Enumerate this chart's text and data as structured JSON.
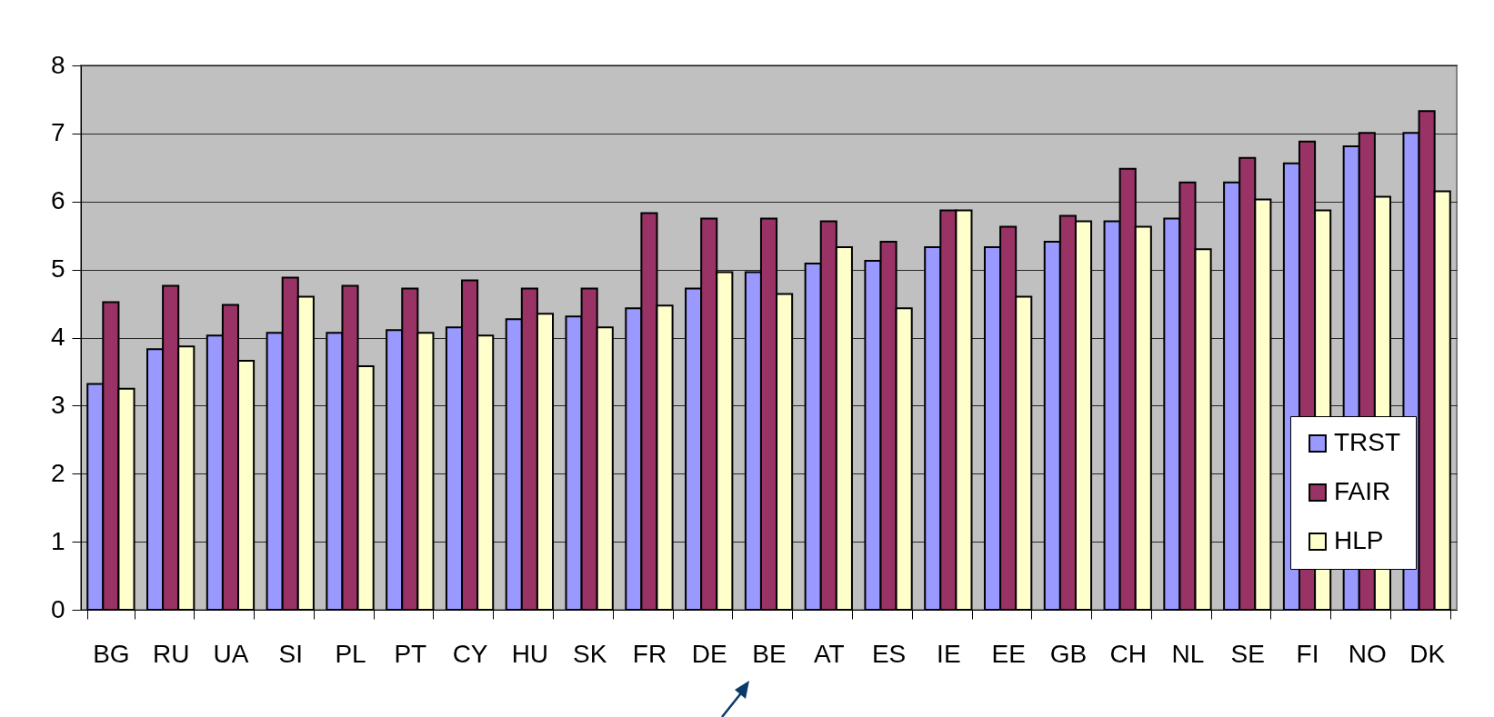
{
  "chart_data": {
    "type": "bar",
    "categories": [
      "BG",
      "RU",
      "UA",
      "SI",
      "PL",
      "PT",
      "CY",
      "HU",
      "SK",
      "FR",
      "DE",
      "BE",
      "AT",
      "ES",
      "IE",
      "EE",
      "GB",
      "CH",
      "NL",
      "SE",
      "FI",
      "NO",
      "DK"
    ],
    "series": [
      {
        "name": "TRST",
        "color": "#9999ff",
        "values": [
          3.32,
          3.83,
          4.03,
          4.07,
          4.07,
          4.11,
          4.15,
          4.27,
          4.31,
          4.43,
          4.72,
          4.96,
          5.09,
          5.13,
          5.33,
          5.33,
          5.41,
          5.71,
          5.75,
          6.28,
          6.56,
          6.81,
          7.01
        ]
      },
      {
        "name": "FAIR",
        "color": "#993366",
        "values": [
          4.52,
          4.76,
          4.48,
          4.88,
          4.76,
          4.72,
          4.84,
          4.72,
          4.72,
          5.83,
          5.75,
          5.75,
          5.71,
          5.41,
          5.87,
          5.63,
          5.79,
          6.48,
          6.28,
          6.64,
          6.88,
          7.01,
          7.33
        ]
      },
      {
        "name": "HLP",
        "color": "#ffffcc",
        "values": [
          3.25,
          3.87,
          3.66,
          4.6,
          3.58,
          4.07,
          4.03,
          4.35,
          4.15,
          4.47,
          4.96,
          4.64,
          5.33,
          4.43,
          5.87,
          4.6,
          5.71,
          5.63,
          5.3,
          6.03,
          5.87,
          6.07,
          6.15
        ]
      }
    ],
    "ylim": [
      0,
      8
    ],
    "yticks": [
      0,
      1,
      2,
      3,
      4,
      5,
      6,
      7,
      8
    ],
    "grid": "y",
    "legend": "bottom right"
  }
}
